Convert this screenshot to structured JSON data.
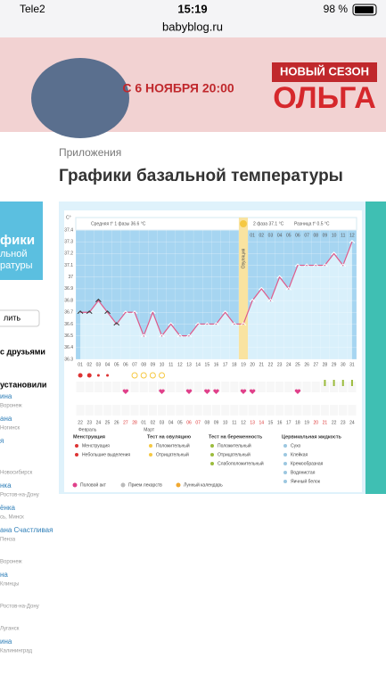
{
  "status": {
    "carrier": "Tele2",
    "time": "15:19",
    "battery": "98 %"
  },
  "url": "babyblog.ru",
  "banner": {
    "date": "С 6 НОЯБРЯ 20:00",
    "season": "НОВЫЙ СЕЗОН",
    "show": "ОЛЬГА"
  },
  "breadcrumb": "Приложения",
  "title": "Графики базальной температуры",
  "sidebar": {
    "app_title": [
      "фики",
      "льной",
      "ратуры"
    ],
    "button": "лить",
    "friends": "с друзьями",
    "installed": "установили",
    "users": [
      [
        "ина",
        "Воронеж"
      ],
      [
        "ана",
        "Ногинск"
      ],
      [
        "я",
        ""
      ],
      [
        "",
        "Новосибирск"
      ],
      [
        "нка",
        "Ростов-на-Дону"
      ],
      [
        "ёнка",
        "сь, Минск"
      ],
      [
        "ана Счастливая",
        "Пенза"
      ],
      [
        "",
        "Воронеж"
      ],
      [
        "на",
        "Клинцы"
      ],
      [
        "",
        "Ростов-на-Дону"
      ],
      [
        "",
        "Луганск"
      ],
      [
        "ина",
        "Калининград"
      ]
    ]
  },
  "chart_data": {
    "type": "line",
    "unit": "С°",
    "phase1_avg": "Средняя t° 1 фазы 36.6 °C",
    "phase2_avg": "2 фаза 37.1 °C",
    "difference": "Разница t° 0.5 °C",
    "ovulation": "Овуляция",
    "categories": [
      "01",
      "02",
      "03",
      "04",
      "05",
      "06",
      "07",
      "08",
      "09",
      "10",
      "11",
      "12",
      "13",
      "14",
      "15",
      "16",
      "17",
      "18",
      "19",
      "20",
      "21",
      "22",
      "23",
      "24",
      "25",
      "26",
      "27",
      "28",
      "29",
      "30",
      "31"
    ],
    "phase2_days": [
      "01",
      "02",
      "03",
      "04",
      "05",
      "06",
      "07",
      "08",
      "09",
      "10",
      "11",
      "12"
    ],
    "dates": [
      "22",
      "23",
      "24",
      "25",
      "26",
      "27",
      "28",
      "01",
      "02",
      "03",
      "04",
      "05",
      "06",
      "07",
      "08",
      "09",
      "10",
      "11",
      "12",
      "13",
      "14",
      "15",
      "16",
      "17",
      "18",
      "19",
      "20",
      "21",
      "22",
      "23",
      "24"
    ],
    "months": [
      "Февраль",
      "Март"
    ],
    "values": [
      36.7,
      36.7,
      36.8,
      36.7,
      36.6,
      36.7,
      36.7,
      36.5,
      36.7,
      36.5,
      36.6,
      36.5,
      36.5,
      36.6,
      36.6,
      36.6,
      36.7,
      36.6,
      36.6,
      36.8,
      36.9,
      36.8,
      37.0,
      36.9,
      37.1,
      37.1,
      37.1,
      37.1,
      37.2,
      37.1,
      37.3
    ],
    "color": "#e05a8a",
    "ylim": [
      36.3,
      37.4
    ],
    "yticks": [
      36.3,
      36.4,
      36.5,
      36.6,
      36.7,
      36.8,
      36.9,
      37,
      37.1,
      37.2,
      37.3,
      37.4
    ],
    "grid": true
  },
  "legend": [
    {
      "title": "Менструация",
      "items": [
        "Менструация",
        "Небольшие выделения"
      ]
    },
    {
      "title": "Тест на овуляцию",
      "items": [
        "Положительный",
        "Отрицательный"
      ]
    },
    {
      "title": "Тест на беременность",
      "items": [
        "Положительный",
        "Отрицательный",
        "Слабоположительный"
      ]
    },
    {
      "title": "Цервикальная жидкость",
      "items": [
        "Сухо",
        "Клейкая",
        "Кремообразная",
        "Водянистая",
        "Яичный белок"
      ]
    }
  ],
  "legend_bottom": [
    "Половой акт",
    "Прием лекарств",
    "Лунный календарь"
  ]
}
